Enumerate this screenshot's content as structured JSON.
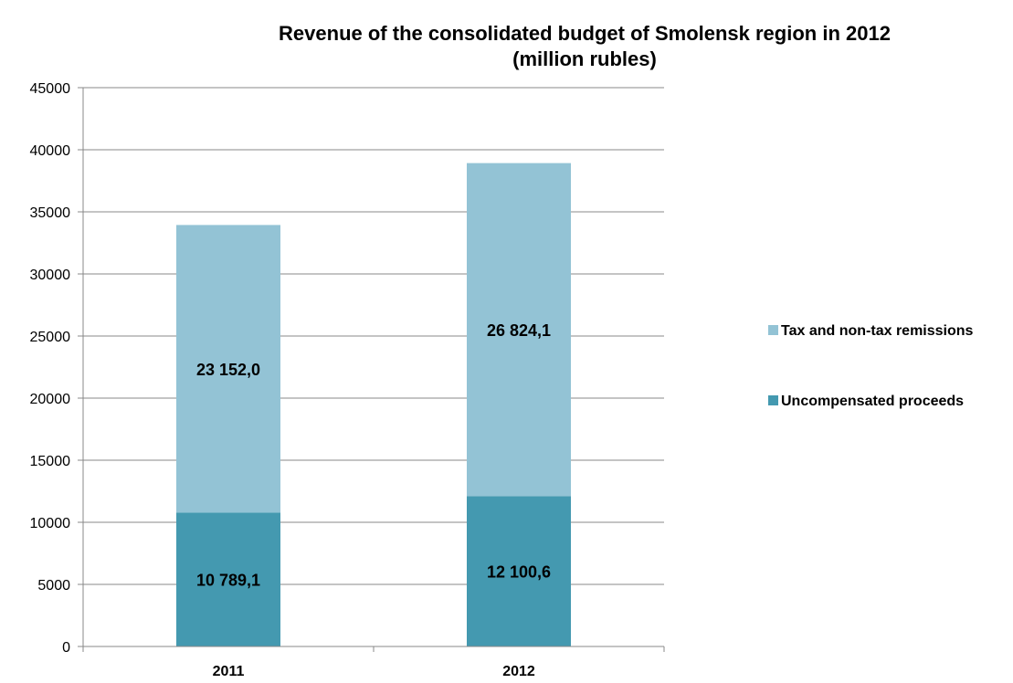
{
  "chart_data": {
    "type": "bar",
    "stacked": true,
    "title_lines": [
      "Revenue of the consolidated budget of Smolensk region in 2012",
      "(million rubles)"
    ],
    "categories": [
      "2011",
      "2012"
    ],
    "series": [
      {
        "name": "Uncompensated proceeds",
        "values": [
          10789.1,
          12100.6
        ],
        "labels": [
          "10 789,1",
          "12 100,6"
        ],
        "color": "#4499b0"
      },
      {
        "name": "Tax and non-tax remissions",
        "values": [
          23152.0,
          26824.1
        ],
        "labels": [
          "23 152,0",
          "26 824,1"
        ],
        "color": "#93c3d5"
      }
    ],
    "ylim": [
      0,
      45000
    ],
    "yticks": [
      0,
      5000,
      10000,
      15000,
      20000,
      25000,
      30000,
      35000,
      40000,
      45000
    ],
    "grid": true,
    "legend_position": "right",
    "legend_order": [
      "Tax and non-tax remissions",
      "Uncompensated proceeds"
    ]
  }
}
